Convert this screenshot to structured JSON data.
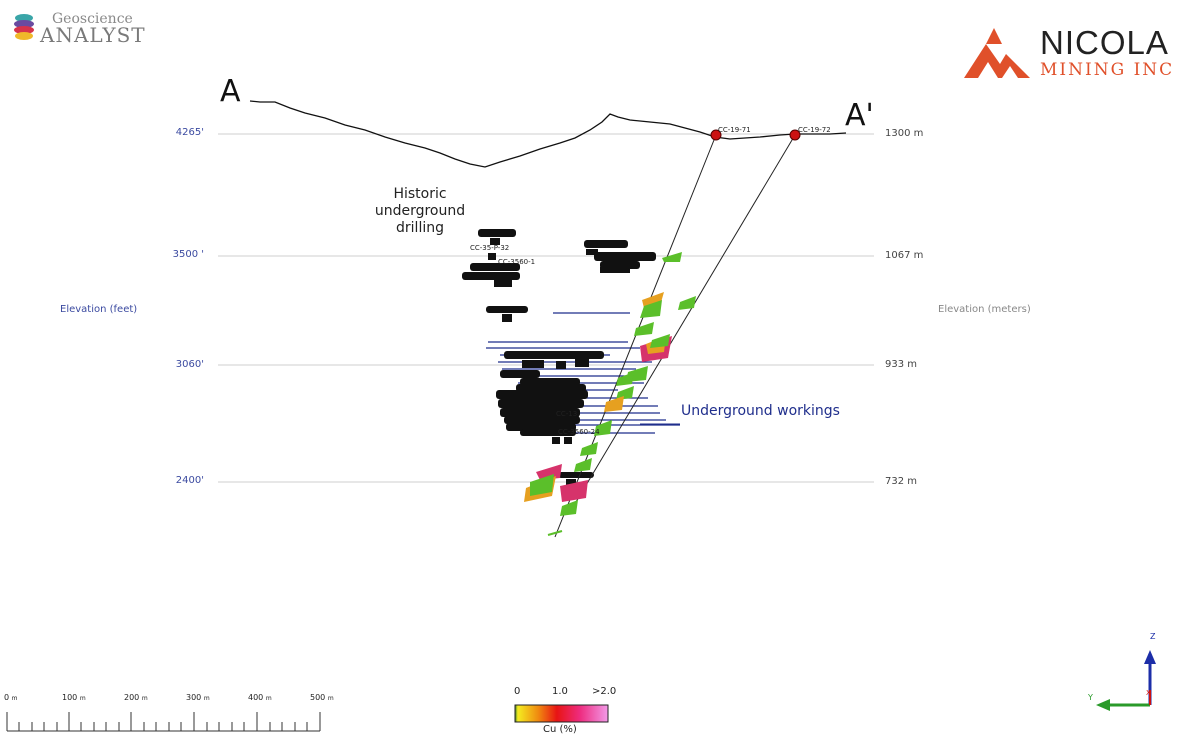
{
  "logos": {
    "geoscience_top": "Geoscience",
    "geoscience_bottom": "ANALYST",
    "nicola_top": "NICOLA",
    "nicola_bottom": "MINING INC"
  },
  "section": {
    "start_label": "A",
    "end_label": "A'"
  },
  "elevations_left": [
    "4265'",
    "3500 '",
    "3060'",
    "2400'"
  ],
  "elevations_right": [
    "1300 m",
    "1067 m",
    "933 m",
    "732 m"
  ],
  "axis_titles": {
    "left": "Elevation (feet)",
    "right": "Elevation (meters)"
  },
  "annotations": {
    "historic_line1": "Historic",
    "historic_line2": "underground",
    "historic_line3": "drilling",
    "workings": "Underground workings"
  },
  "drillholes": {
    "hole1": "CC-19-71",
    "hole2": "CC-19-72",
    "historic_labels": [
      "CC-35-P-32",
      "CC-3560-1",
      "CC-3560-24",
      "CC-13"
    ]
  },
  "scale_bar": {
    "labels": [
      "0",
      "100",
      "200",
      "300",
      "400",
      "500"
    ],
    "unit": "m"
  },
  "legend": {
    "min": "0",
    "mid": "1.0",
    "max": ">2.0",
    "title": "Cu (%)"
  },
  "orientation": {
    "z_label": "Z",
    "y_label": "Y",
    "x_label": "X"
  },
  "colors": {
    "elevation_text": "#3b4aa0",
    "workings": "#1f2e8c",
    "collar": "#cc1111",
    "nicola_red": "#e0502a",
    "nicola_text": "#222222"
  }
}
